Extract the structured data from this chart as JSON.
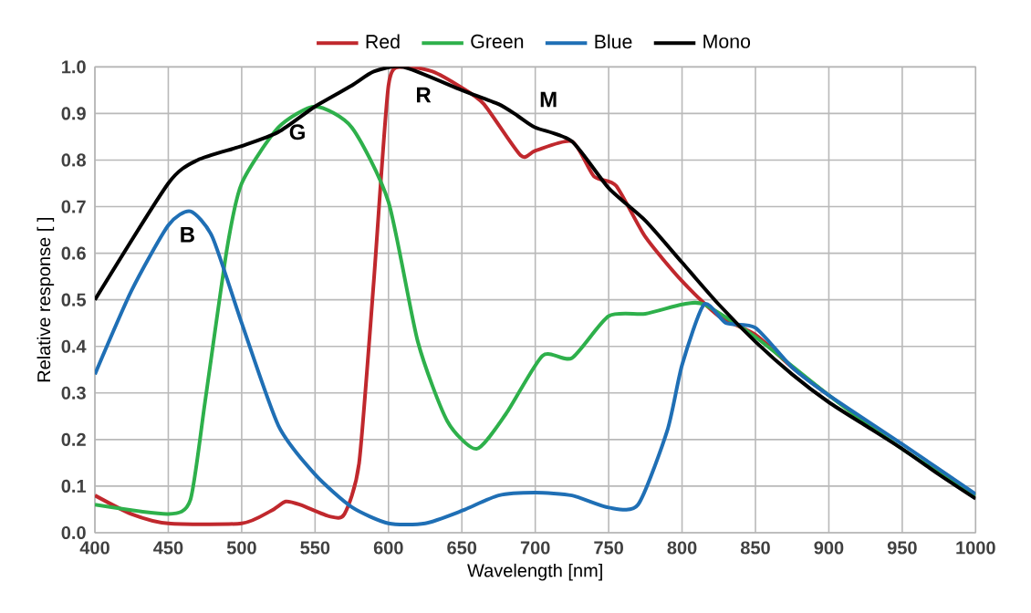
{
  "chart_data": {
    "type": "line",
    "xlabel": "Wavelength [nm]",
    "ylabel": "Relative response [ ]",
    "xlim": [
      400,
      1000
    ],
    "ylim": [
      0,
      1
    ],
    "xticks": [
      400,
      450,
      500,
      550,
      600,
      650,
      700,
      750,
      800,
      850,
      900,
      950,
      1000
    ],
    "yticks": [
      {
        "value": 0,
        "label": "0.0"
      },
      0.1,
      0.2,
      0.3,
      0.4,
      0.5,
      0.6,
      0.7,
      0.8,
      0.9,
      {
        "value": 1,
        "label": "1.0"
      }
    ],
    "grid": true,
    "legend": "top",
    "line_style": "solid",
    "marker": "none",
    "annotations": [
      "B",
      "G",
      "R",
      "M"
    ],
    "series": [
      {
        "name": "Red",
        "color": "#c0282d",
        "x": [
          400,
          425,
          450,
          500,
          520,
          530,
          540,
          560,
          570,
          580,
          590,
          600,
          610,
          630,
          650,
          665,
          690,
          700,
          725,
          740,
          755,
          775,
          800,
          825,
          850,
          875,
          900
        ],
        "values": [
          0.08,
          0.04,
          0.02,
          0.02,
          0.047,
          0.067,
          0.06,
          0.035,
          0.04,
          0.15,
          0.54,
          0.96,
          1.0,
          0.99,
          0.955,
          0.92,
          0.81,
          0.82,
          0.84,
          0.765,
          0.745,
          0.635,
          0.54,
          0.465,
          0.425,
          0.355,
          0.295
        ]
      },
      {
        "name": "Green",
        "color": "#2eb04b",
        "x": [
          400,
          450,
          465,
          475,
          490,
          500,
          525,
          550,
          575,
          600,
          620,
          640,
          660,
          680,
          705,
          725,
          750,
          775,
          800,
          815,
          850,
          900,
          950,
          1000
        ],
        "values": [
          0.06,
          0.04,
          0.07,
          0.28,
          0.61,
          0.75,
          0.87,
          0.915,
          0.87,
          0.71,
          0.41,
          0.24,
          0.18,
          0.255,
          0.38,
          0.375,
          0.465,
          0.47,
          0.49,
          0.49,
          0.42,
          0.295,
          0.18,
          0.08
        ]
      },
      {
        "name": "Blue",
        "color": "#1f6fb5",
        "x": [
          400,
          425,
          450,
          465,
          480,
          500,
          525,
          550,
          575,
          600,
          625,
          650,
          675,
          700,
          725,
          750,
          770,
          790,
          800,
          815,
          830,
          850,
          875,
          900,
          950,
          1000
        ],
        "values": [
          0.34,
          0.52,
          0.66,
          0.69,
          0.635,
          0.45,
          0.23,
          0.125,
          0.055,
          0.02,
          0.02,
          0.047,
          0.08,
          0.086,
          0.08,
          0.054,
          0.06,
          0.22,
          0.36,
          0.49,
          0.45,
          0.44,
          0.355,
          0.295,
          0.19,
          0.083
        ]
      },
      {
        "name": "Mono",
        "color": "#000000",
        "x": [
          400,
          450,
          470,
          500,
          525,
          550,
          575,
          590,
          610,
          650,
          675,
          688,
          700,
          725,
          750,
          775,
          800,
          825,
          850,
          875,
          900,
          925,
          950,
          975,
          1000
        ],
        "values": [
          0.5,
          0.75,
          0.8,
          0.83,
          0.86,
          0.915,
          0.96,
          0.99,
          1.0,
          0.95,
          0.92,
          0.895,
          0.87,
          0.84,
          0.74,
          0.67,
          0.58,
          0.49,
          0.41,
          0.34,
          0.28,
          0.23,
          0.18,
          0.125,
          0.073
        ]
      }
    ]
  }
}
